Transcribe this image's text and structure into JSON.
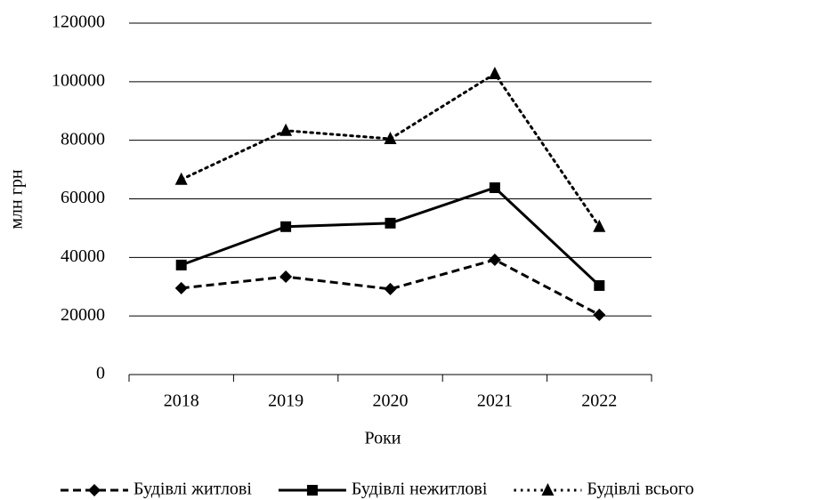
{
  "chart_data": {
    "type": "line",
    "x_label": "Роки",
    "y_label": "млн грн",
    "categories": [
      "2018",
      "2019",
      "2020",
      "2021",
      "2022"
    ],
    "series": [
      {
        "name": "Будівлі житлові",
        "color": "#000000",
        "line_style": "dashed",
        "marker": "diamond",
        "values": [
          29500,
          33400,
          29200,
          39200,
          20400
        ]
      },
      {
        "name": "Будівлі нежитлові",
        "color": "#000000",
        "line_style": "solid",
        "marker": "square",
        "values": [
          37400,
          50500,
          51700,
          63800,
          30400
        ]
      },
      {
        "name": "Будівлі всього",
        "color": "#000000",
        "line_style": "dotted",
        "marker": "triangle",
        "values": [
          66600,
          83300,
          80500,
          102700,
          50500
        ]
      }
    ],
    "ylim": [
      0,
      120000
    ],
    "yticks": [
      0,
      20000,
      40000,
      60000,
      80000,
      100000,
      120000
    ],
    "grid": true,
    "legend": "bottom"
  }
}
